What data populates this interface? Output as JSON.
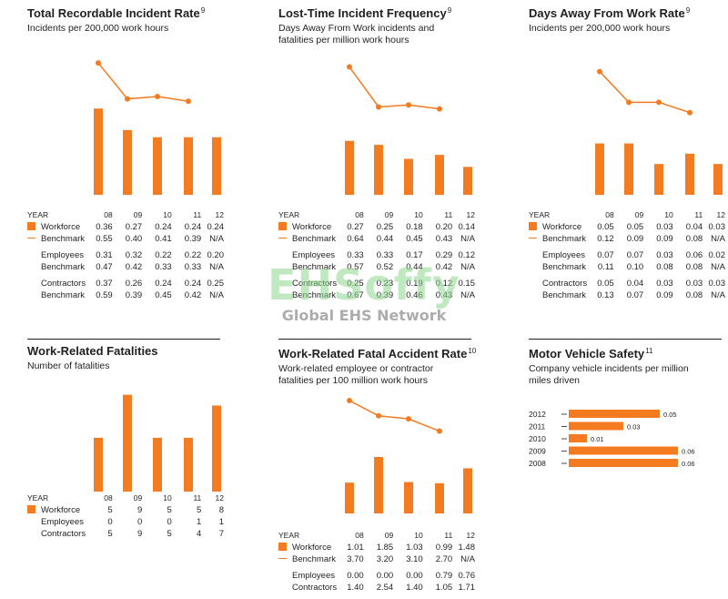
{
  "colors": {
    "accent": "#f47b20",
    "text": "#231f20"
  },
  "watermark": {
    "brand": "EHSoffy",
    "tagline": "Global EHS Network"
  },
  "chart_data": [
    {
      "id": "trir",
      "type": "bar",
      "title": "Total Recordable Incident Rate",
      "footnote": "9",
      "subtitle": "Incidents per 200,000 work hours",
      "header_label": "YEAR",
      "categories": [
        "08",
        "09",
        "10",
        "11",
        "12"
      ],
      "bars": [
        0.36,
        0.27,
        0.24,
        0.24,
        0.24
      ],
      "line": [
        0.55,
        0.4,
        0.41,
        0.39,
        null
      ],
      "ylim": [
        0,
        0.6
      ],
      "rows": [
        {
          "label": "Workforce",
          "marker": "box",
          "values": [
            "0.36",
            "0.27",
            "0.24",
            "0.24",
            "0.24"
          ]
        },
        {
          "label": "Benchmark",
          "marker": "line",
          "values": [
            "0.55",
            "0.40",
            "0.41",
            "0.39",
            "N/A"
          ]
        },
        {
          "label": "Employees",
          "marker": "none",
          "gap": true,
          "values": [
            "0.31",
            "0.32",
            "0.22",
            "0.22",
            "0.20"
          ]
        },
        {
          "label": "Benchmark",
          "marker": "none",
          "values": [
            "0.47",
            "0.42",
            "0.33",
            "0.33",
            "N/A"
          ]
        },
        {
          "label": "Contractors",
          "marker": "none",
          "gap": true,
          "values": [
            "0.37",
            "0.26",
            "0.24",
            "0.24",
            "0.25"
          ]
        },
        {
          "label": "Benchmark",
          "marker": "none",
          "values": [
            "0.59",
            "0.39",
            "0.45",
            "0.42",
            "N/A"
          ]
        }
      ]
    },
    {
      "id": "ltif",
      "type": "bar",
      "title": "Lost-Time Incident Frequency",
      "footnote": "9",
      "subtitle": "Days Away From Work incidents and fatalities per million work hours",
      "header_label": "YEAR",
      "categories": [
        "08",
        "09",
        "10",
        "11",
        "12"
      ],
      "bars": [
        0.27,
        0.25,
        0.18,
        0.2,
        0.14
      ],
      "line": [
        0.64,
        0.44,
        0.45,
        0.43,
        null
      ],
      "ylim": [
        0,
        0.72
      ],
      "rows": [
        {
          "label": "Workforce",
          "marker": "box",
          "values": [
            "0.27",
            "0.25",
            "0.18",
            "0.20",
            "0.14"
          ]
        },
        {
          "label": "Benchmark",
          "marker": "line",
          "values": [
            "0.64",
            "0.44",
            "0.45",
            "0.43",
            "N/A"
          ]
        },
        {
          "label": "Employees",
          "marker": "none",
          "gap": true,
          "values": [
            "0.33",
            "0.33",
            "0.17",
            "0.29",
            "0.12"
          ]
        },
        {
          "label": "Benchmark",
          "marker": "none",
          "values": [
            "0.57",
            "0.52",
            "0.44",
            "0.42",
            "N/A"
          ]
        },
        {
          "label": "Contractors",
          "marker": "none",
          "gap": true,
          "values": [
            "0.25",
            "0.23",
            "0.19",
            "0.12",
            "0.15"
          ]
        },
        {
          "label": "Benchmark",
          "marker": "none",
          "values": [
            "0.67",
            "0.39",
            "0.46",
            "0.43",
            "N/A"
          ]
        }
      ]
    },
    {
      "id": "dafwr",
      "type": "bar",
      "title": "Days Away From Work Rate",
      "footnote": "9",
      "subtitle": "Incidents per 200,000 work hours",
      "header_label": "YEAR",
      "categories": [
        "08",
        "09",
        "10",
        "11",
        "12"
      ],
      "bars": [
        0.05,
        0.05,
        0.03,
        0.04,
        0.03
      ],
      "line": [
        0.12,
        0.09,
        0.09,
        0.08,
        null
      ],
      "ylim": [
        0,
        0.14
      ],
      "rows": [
        {
          "label": "Workforce",
          "marker": "box",
          "values": [
            "0.05",
            "0.05",
            "0.03",
            "0.04",
            "0.03"
          ]
        },
        {
          "label": "Benchmark",
          "marker": "line",
          "values": [
            "0.12",
            "0.09",
            "0.09",
            "0.08",
            "N/A"
          ]
        },
        {
          "label": "Employees",
          "marker": "none",
          "gap": true,
          "values": [
            "0.07",
            "0.07",
            "0.03",
            "0.06",
            "0.02"
          ]
        },
        {
          "label": "Benchmark",
          "marker": "none",
          "values": [
            "0.11",
            "0.10",
            "0.08",
            "0.08",
            "N/A"
          ]
        },
        {
          "label": "Contractors",
          "marker": "none",
          "gap": true,
          "values": [
            "0.05",
            "0.04",
            "0.03",
            "0.03",
            "0.03"
          ]
        },
        {
          "label": "Benchmark",
          "marker": "none",
          "values": [
            "0.13",
            "0.07",
            "0.09",
            "0.08",
            "N/A"
          ]
        }
      ]
    },
    {
      "id": "fatalities",
      "type": "bar",
      "title": "Work-Related Fatalities",
      "footnote": "",
      "subtitle": "Number of fatalities",
      "header_label": "YEAR",
      "categories": [
        "08",
        "09",
        "10",
        "11",
        "12"
      ],
      "bars": [
        5,
        9,
        5,
        5,
        8
      ],
      "line": null,
      "ylim": [
        0,
        11
      ],
      "rows": [
        {
          "label": "Workforce",
          "marker": "box",
          "values": [
            "5",
            "9",
            "5",
            "5",
            "8"
          ]
        },
        {
          "label": "Employees",
          "marker": "none",
          "values": [
            "0",
            "0",
            "0",
            "1",
            "1"
          ]
        },
        {
          "label": "Contractors",
          "marker": "none",
          "values": [
            "5",
            "9",
            "5",
            "4",
            "7"
          ]
        }
      ]
    },
    {
      "id": "fatal-accident-rate",
      "type": "bar",
      "title": "Work-Related Fatal Accident Rate",
      "footnote": "10",
      "subtitle": "Work-related employee or contractor fatalities per 100 million work hours",
      "header_label": "YEAR",
      "categories": [
        "08",
        "09",
        "10",
        "11",
        "12"
      ],
      "bars": [
        1.01,
        1.85,
        1.03,
        0.99,
        1.48
      ],
      "line": [
        3.7,
        3.2,
        3.1,
        2.7,
        null
      ],
      "ylim": [
        0,
        4.0
      ],
      "rows": [
        {
          "label": "Workforce",
          "marker": "box",
          "values": [
            "1.01",
            "1.85",
            "1.03",
            "0.99",
            "1.48"
          ]
        },
        {
          "label": "Benchmark",
          "marker": "line",
          "values": [
            "3.70",
            "3.20",
            "3.10",
            "2.70",
            "N/A"
          ]
        },
        {
          "label": "Employees",
          "marker": "none",
          "gap": true,
          "values": [
            "0.00",
            "0.00",
            "0.00",
            "0.79",
            "0.76"
          ]
        },
        {
          "label": "Contractors",
          "marker": "none",
          "values": [
            "1.40",
            "2.54",
            "1.40",
            "1.05",
            "1.71"
          ]
        }
      ]
    },
    {
      "id": "motor-vehicle",
      "type": "hbar",
      "title": "Motor Vehicle Safety",
      "footnote": "11",
      "subtitle": "Company vehicle incidents per million miles driven",
      "categories": [
        "2012",
        "2011",
        "2010",
        "2009",
        "2008"
      ],
      "values": [
        0.05,
        0.03,
        0.01,
        0.06,
        0.06
      ],
      "value_labels": [
        "0.05",
        "0.03",
        "0.01",
        "0.06",
        "0.06"
      ],
      "xlim": [
        0,
        0.065
      ]
    }
  ]
}
